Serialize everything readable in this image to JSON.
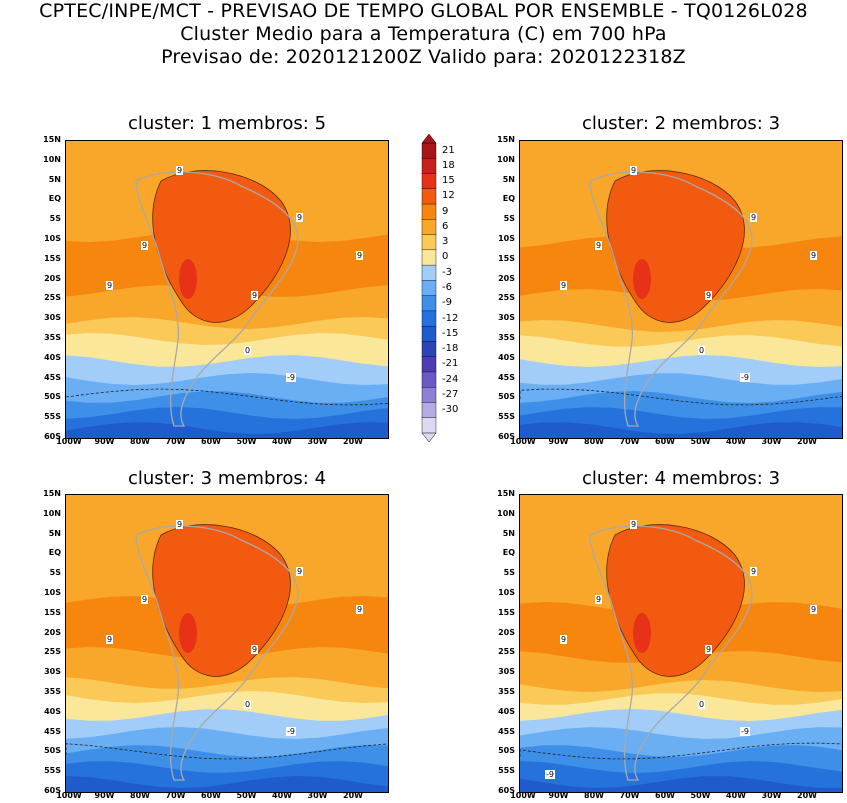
{
  "header": {
    "line1": "CPTEC/INPE/MCT - PREVISAO DE TEMPO GLOBAL POR ENSEMBLE - TQ0126L028",
    "line2": "Cluster Medio para a Temperatura (C) em 700 hPa",
    "line3": "Previsao de: 2020121200Z   Valido para: 2020122318Z"
  },
  "panels": [
    {
      "title": "cluster: 1   membros: 5"
    },
    {
      "title": "cluster: 2   membros: 3"
    },
    {
      "title": "cluster: 3   membros: 4"
    },
    {
      "title": "cluster: 4   membros: 3"
    }
  ],
  "lat_ticks": [
    "15N",
    "10N",
    "5N",
    "EQ",
    "5S",
    "10S",
    "15S",
    "20S",
    "25S",
    "30S",
    "35S",
    "40S",
    "45S",
    "50S",
    "55S",
    "60S"
  ],
  "lon_ticks": [
    "100W",
    "90W",
    "80W",
    "70W",
    "60W",
    "50W",
    "40W",
    "30W",
    "20W"
  ],
  "colorbar": {
    "labels": [
      "21",
      "18",
      "15",
      "12",
      "9",
      "6",
      "3",
      "0",
      "-3",
      "-6",
      "-9",
      "-12",
      "-15",
      "-18",
      "-21",
      "-24",
      "-27",
      "-30"
    ],
    "colors": [
      "#a8141a",
      "#c8201c",
      "#e83218",
      "#f25a10",
      "#f7860f",
      "#f9a72a",
      "#fac957",
      "#fbe79a",
      "#a2cdf9",
      "#6aaef3",
      "#3d8fe8",
      "#2672dc",
      "#1f5bcc",
      "#2b45b6",
      "#4e3cb4",
      "#6b5ac6",
      "#8e80d6",
      "#b4abe3",
      "#dcd8f1"
    ]
  },
  "contour_labels": {
    "panel1": [
      "9",
      "9",
      "9",
      "9",
      "9",
      "9",
      "0",
      "-9"
    ],
    "panel2": [
      "9",
      "9",
      "9",
      "9",
      "9",
      "9",
      "0",
      "-9"
    ],
    "panel3": [
      "9",
      "9",
      "9",
      "9",
      "9",
      "9",
      "0",
      "-9"
    ],
    "panel4": [
      "9",
      "9",
      "9",
      "9",
      "9",
      "9",
      "0",
      "-9",
      "-9"
    ]
  }
}
